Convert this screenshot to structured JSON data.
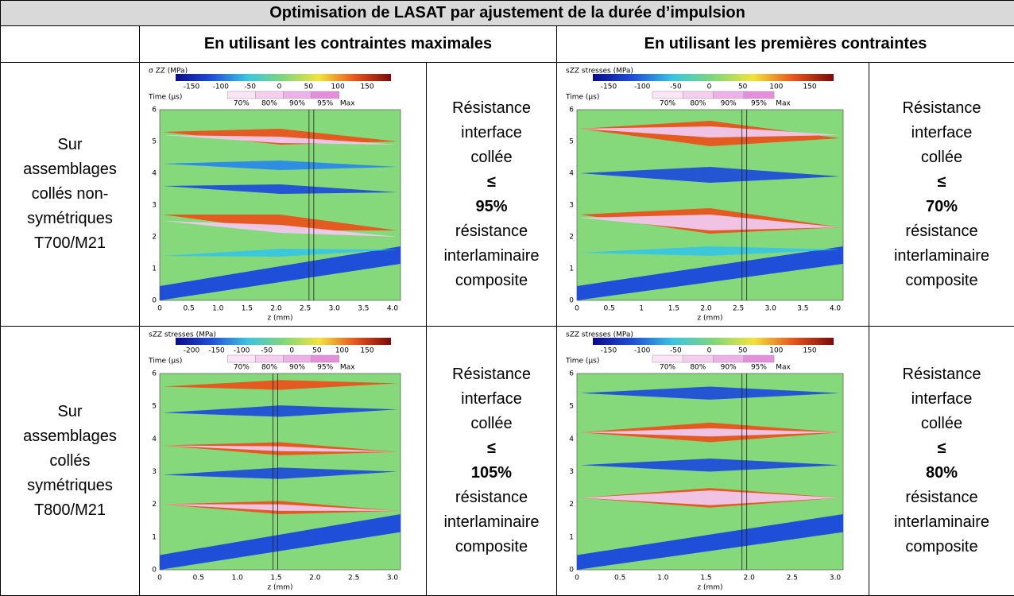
{
  "header": {
    "title": "Optimisation de LASAT par ajustement de la durée d’impulsion"
  },
  "columns": [
    "En utilisant les contraintes maximales",
    "En utilisant les premières contraintes"
  ],
  "rows": [
    {
      "label": [
        "Sur",
        "assemblages",
        "collés non-",
        "symétriques",
        "T700/M21"
      ],
      "cells": [
        {
          "plot": {
            "colorbar_title": "σ ZZ (MPa)",
            "colorbar_ticks": [
              "-150",
              "-100",
              "-50",
              "0",
              "50",
              "100",
              "150"
            ],
            "levels": [
              "70%",
              "80%",
              "90%",
              "95%",
              "Max"
            ],
            "ylabel": "Time (µs)",
            "yticks": [
              "0",
              "1",
              "2",
              "3",
              "4",
              "5",
              "6"
            ],
            "xticks": [
              "0",
              "0.5",
              "1.0",
              "1.5",
              "2.0",
              "2.5",
              "3.0",
              "3.5",
              "4.0"
            ],
            "xlabel": "z (mm)"
          },
          "text": [
            "Résistance",
            "interface",
            "collée",
            "≤",
            "95%",
            "résistance",
            "interlaminaire",
            "composite"
          ]
        },
        {
          "plot": {
            "colorbar_title": "sZZ stresses (MPa)",
            "colorbar_ticks": [
              "-150",
              "-100",
              "-50",
              "0",
              "50",
              "100",
              "150"
            ],
            "levels": [
              "70%",
              "80%",
              "90%",
              "95%",
              "Max"
            ],
            "ylabel": "Time (µs)",
            "yticks": [
              "0",
              "1",
              "2",
              "3",
              "4",
              "5",
              "6"
            ],
            "xticks": [
              "0",
              "0.5",
              "1",
              "1.5",
              "2.0",
              "2.5",
              "3.0",
              "3.5",
              "4.0"
            ],
            "xlabel": "z (mm)"
          },
          "text": [
            "Résistance",
            "interface",
            "collée",
            "≤",
            "70%",
            "résistance",
            "interlaminaire",
            "composite"
          ]
        }
      ]
    },
    {
      "label": [
        "Sur",
        "assemblages",
        "collés",
        "symétriques",
        "T800/M21"
      ],
      "cells": [
        {
          "plot": {
            "colorbar_title": "sZZ stresses (MPa)",
            "colorbar_ticks": [
              "-200",
              "-150",
              "-100",
              "-50",
              "0",
              "50",
              "100",
              "150"
            ],
            "levels": [
              "70%",
              "80%",
              "90%",
              "95%",
              "Max"
            ],
            "ylabel": "Time (µs)",
            "yticks": [
              "0",
              "1",
              "2",
              "3",
              "4",
              "5",
              "6"
            ],
            "xticks": [
              "0",
              "0.5",
              "1.0",
              "1.5",
              "2.0",
              "2.5",
              "3.0"
            ],
            "xlabel": "z (mm)"
          },
          "text": [
            "Résistance",
            "interface",
            "collée",
            "≤",
            "105%",
            "résistance",
            "interlaminaire",
            "composite"
          ]
        },
        {
          "plot": {
            "colorbar_title": "sZZ stresses (MPa)",
            "colorbar_ticks": [
              "-150",
              "-100",
              "-50",
              "0",
              "50",
              "100",
              "150"
            ],
            "levels": [
              "70%",
              "80%",
              "90%",
              "95%",
              "Max"
            ],
            "ylabel": "Time (µs)",
            "yticks": [
              "0",
              "1",
              "2",
              "3",
              "4",
              "5",
              "6"
            ],
            "xticks": [
              "0",
              "0.5",
              "1.0",
              "1.5",
              "2.0",
              "2.5",
              "3.0"
            ],
            "xlabel": "z (mm)"
          },
          "text": [
            "Résistance",
            "interface",
            "collée",
            "≤",
            "80%",
            "résistance",
            "interlaminaire",
            "composite"
          ]
        }
      ]
    }
  ]
}
